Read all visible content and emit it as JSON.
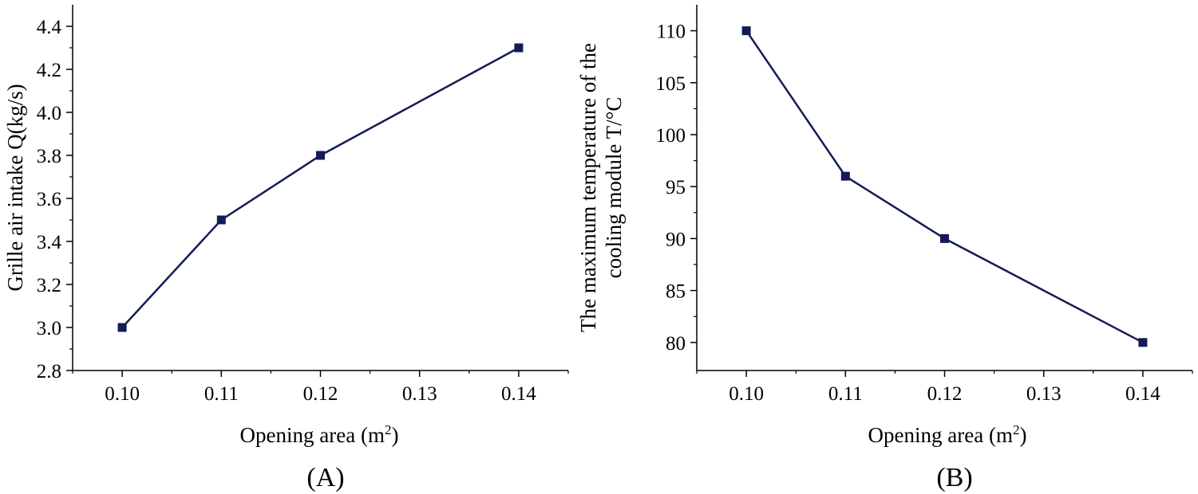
{
  "colors": {
    "series": "#141b57",
    "axis": "#000000"
  },
  "chart_data": [
    {
      "type": "line",
      "panel_label": "(A)",
      "x": [
        0.1,
        0.11,
        0.12,
        0.14
      ],
      "series": [
        {
          "name": "Grille air intake",
          "values": [
            3.0,
            3.5,
            3.8,
            4.3
          ]
        }
      ],
      "xlabel": "Opening area (m",
      "xlabel_sup": "2",
      "xlabel_end": ")",
      "ylabel_lines": [
        "Grille air intake Q(kg/s)"
      ],
      "xlim": [
        0.095,
        0.145
      ],
      "ylim": [
        2.8,
        4.5
      ],
      "xticks": [
        0.1,
        0.11,
        0.12,
        0.13,
        0.14
      ],
      "xtick_labels": [
        "0.10",
        "0.11",
        "0.12",
        "0.13",
        "0.14"
      ],
      "yticks": [
        2.8,
        3.0,
        3.2,
        3.4,
        3.6,
        3.8,
        4.0,
        4.2,
        4.4
      ],
      "ytick_labels": [
        "2.8",
        "3.0",
        "3.2",
        "3.4",
        "3.6",
        "3.8",
        "4.0",
        "4.2",
        "4.4"
      ],
      "grid": false
    },
    {
      "type": "line",
      "panel_label": "(B)",
      "x": [
        0.1,
        0.11,
        0.12,
        0.14
      ],
      "series": [
        {
          "name": "Maximum temperature of the cooling module",
          "values": [
            110,
            96,
            90,
            80
          ]
        }
      ],
      "xlabel": "Opening area (m",
      "xlabel_sup": "2",
      "xlabel_end": ")",
      "ylabel_lines": [
        "The maximum temperature of the",
        "cooling module T/°C"
      ],
      "xlim": [
        0.095,
        0.145
      ],
      "ylim": [
        77.3,
        112.5
      ],
      "xticks": [
        0.1,
        0.11,
        0.12,
        0.13,
        0.14
      ],
      "xtick_labels": [
        "0.10",
        "0.11",
        "0.12",
        "0.13",
        "0.14"
      ],
      "yticks": [
        80,
        85,
        90,
        95,
        100,
        105,
        110
      ],
      "ytick_labels": [
        "80",
        "85",
        "90",
        "95",
        "100",
        "105",
        "110"
      ],
      "grid": false
    }
  ]
}
